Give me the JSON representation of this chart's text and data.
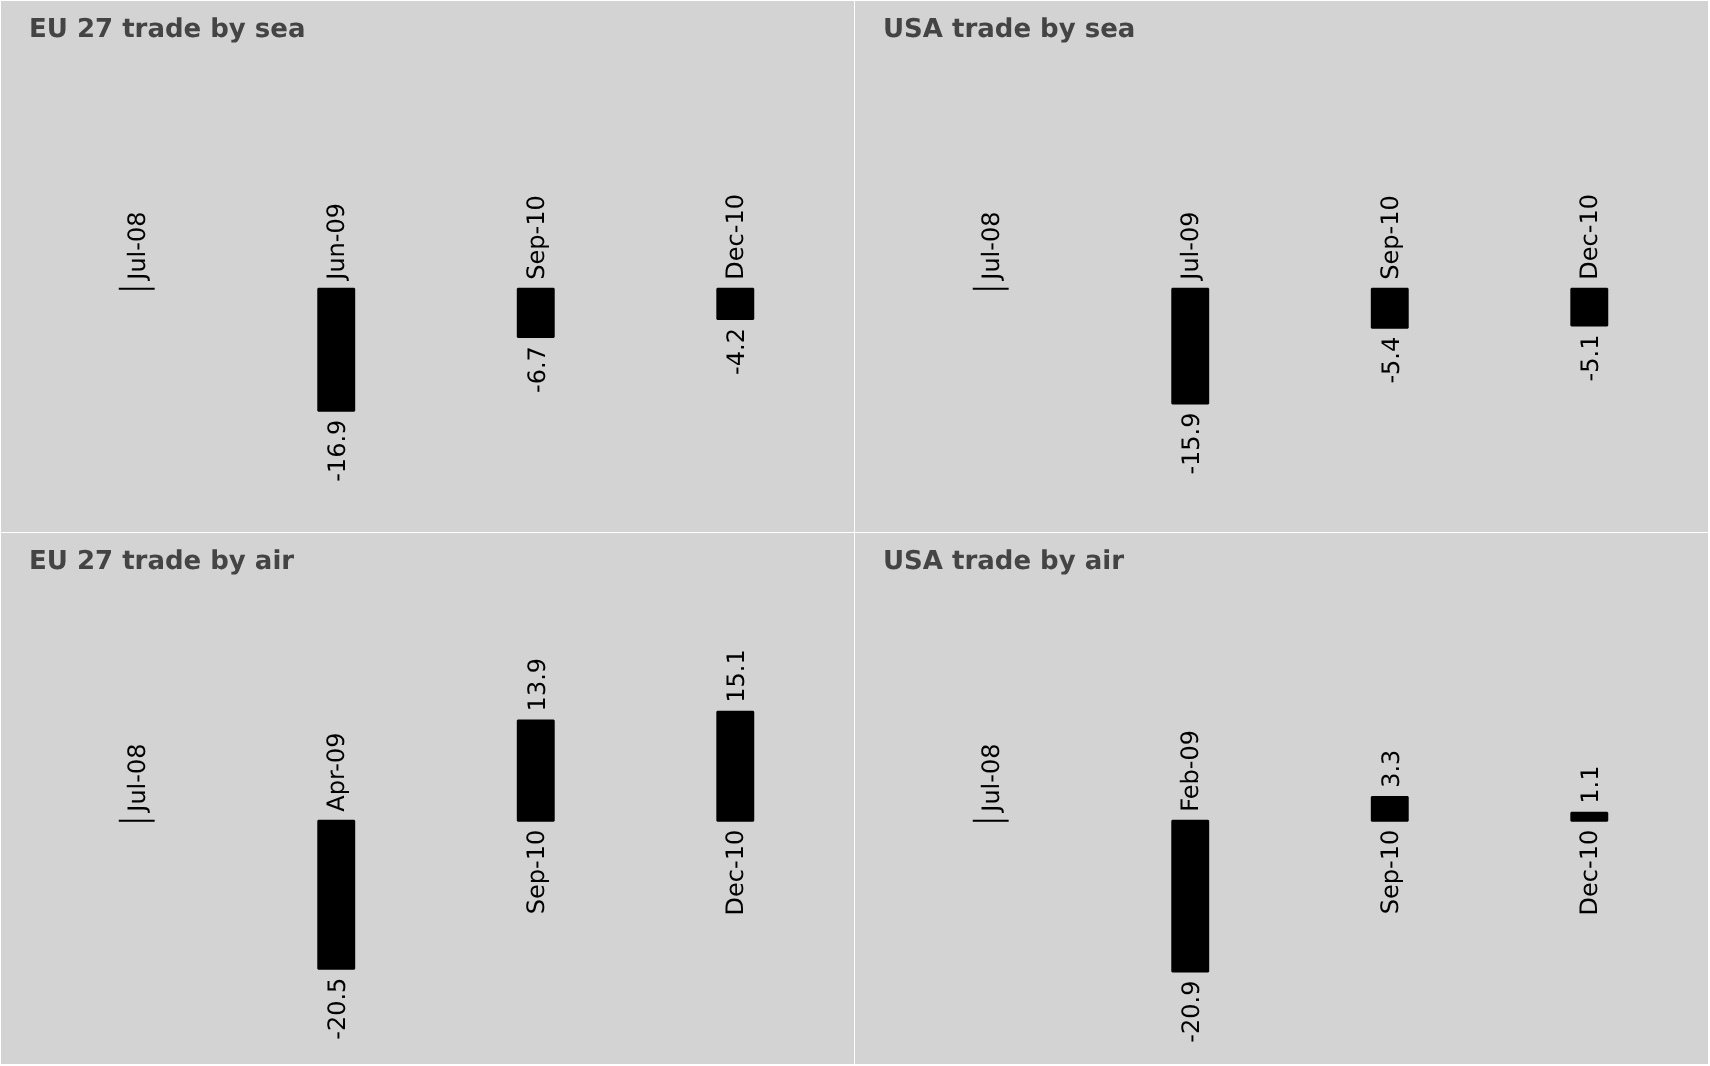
{
  "chart_data": [
    {
      "type": "bar",
      "title": "EU 27 trade by sea",
      "categories": [
        "Jul-08",
        "Jun-09",
        "Sep-10",
        "Dec-10"
      ],
      "values": [
        0,
        -16.9,
        -6.7,
        -4.2
      ],
      "value_labels": [
        null,
        "-16.9",
        "-6.7",
        "-4.2"
      ],
      "color": "#000000"
    },
    {
      "type": "bar",
      "title": "USA trade by sea",
      "categories": [
        "Jul-08",
        "Jul-09",
        "Sep-10",
        "Dec-10"
      ],
      "values": [
        0,
        -15.9,
        -5.4,
        -5.1
      ],
      "value_labels": [
        null,
        "-15.9",
        "-5.4",
        "-5.1"
      ],
      "color": "#000000"
    },
    {
      "type": "bar",
      "title": "EU 27 trade by air",
      "categories": [
        "Jul-08",
        "Apr-09",
        "Sep-10",
        "Dec-10"
      ],
      "values": [
        0,
        -20.5,
        13.9,
        15.1
      ],
      "value_labels": [
        null,
        "-20.5",
        "13.9",
        "15.1"
      ],
      "color": "#000000"
    },
    {
      "type": "bar",
      "title": "USA trade by air",
      "categories": [
        "Jul-08",
        "Feb-09",
        "Sep-10",
        "Dec-10"
      ],
      "values": [
        0,
        -20.9,
        3.3,
        1.1
      ],
      "value_labels": [
        null,
        "-20.9",
        "3.3",
        "1.1"
      ],
      "color": "#000000"
    }
  ]
}
